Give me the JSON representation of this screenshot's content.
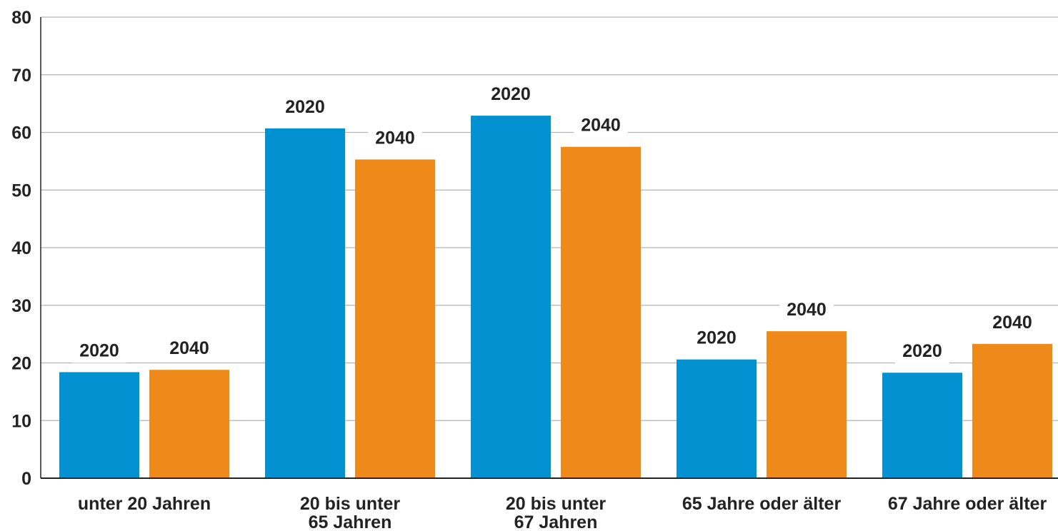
{
  "colors": {
    "series_2020": "#0391d1",
    "series_2040": "#ef8a1a",
    "grid": "#b3b3b3",
    "axis": "#222222",
    "text": "#222222"
  },
  "chart_data": {
    "type": "bar",
    "title": "",
    "xlabel": "",
    "ylabel": "",
    "ylim": [
      0,
      80
    ],
    "yticks": [
      0,
      10,
      20,
      30,
      40,
      50,
      60,
      70,
      80
    ],
    "grid": true,
    "legend": "none",
    "categories": [
      [
        "unter 20 Jahren"
      ],
      [
        "20 bis unter",
        "65 Jahren"
      ],
      [
        "20 bis unter",
        "67 Jahren"
      ],
      [
        "65 Jahre oder älter"
      ],
      [
        "67 Jahre oder älter"
      ]
    ],
    "series": [
      {
        "bar_label": "2020",
        "values": [
          18.4,
          60.7,
          62.9,
          20.6,
          18.3
        ]
      },
      {
        "bar_label": "2040",
        "values": [
          18.8,
          55.3,
          57.5,
          25.5,
          23.3
        ]
      }
    ]
  }
}
